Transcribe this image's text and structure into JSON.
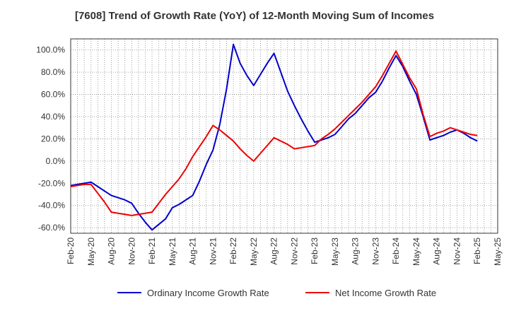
{
  "chart_data": {
    "type": "line",
    "title": "[7608]  Trend of Growth Rate (YoY) of 12-Month Moving Sum of Incomes",
    "xlabel": "",
    "ylabel": "",
    "ylim": [
      -65,
      110
    ],
    "y_ticks": [
      {
        "value": 100,
        "label": "100.0%"
      },
      {
        "value": 80,
        "label": "80.0%"
      },
      {
        "value": 60,
        "label": "60.0%"
      },
      {
        "value": 40,
        "label": "40.0%"
      },
      {
        "value": 20,
        "label": "20.0%"
      },
      {
        "value": 0,
        "label": "0.0%"
      },
      {
        "value": -20,
        "label": "-20.0%"
      },
      {
        "value": -40,
        "label": "-40.0%"
      },
      {
        "value": -60,
        "label": "-60.0%"
      }
    ],
    "x_tick_labels": [
      "Feb-20",
      "May-20",
      "Aug-20",
      "Nov-20",
      "Feb-21",
      "May-21",
      "Aug-21",
      "Nov-21",
      "Feb-22",
      "May-22",
      "Aug-22",
      "Nov-22",
      "Feb-23",
      "May-23",
      "Aug-23",
      "Nov-23",
      "Feb-24",
      "May-24",
      "Aug-24",
      "Nov-24",
      "Feb-25",
      "May-25"
    ],
    "x_months": [
      "2020-02",
      "2020-03",
      "2020-04",
      "2020-05",
      "2020-06",
      "2020-07",
      "2020-08",
      "2020-09",
      "2020-10",
      "2020-11",
      "2020-12",
      "2021-01",
      "2021-02",
      "2021-03",
      "2021-04",
      "2021-05",
      "2021-06",
      "2021-07",
      "2021-08",
      "2021-09",
      "2021-10",
      "2021-11",
      "2021-12",
      "2022-01",
      "2022-02",
      "2022-03",
      "2022-04",
      "2022-05",
      "2022-06",
      "2022-07",
      "2022-08",
      "2022-09",
      "2022-10",
      "2022-11",
      "2022-12",
      "2023-01",
      "2023-02",
      "2023-03",
      "2023-04",
      "2023-05",
      "2023-06",
      "2023-07",
      "2023-08",
      "2023-09",
      "2023-10",
      "2023-11",
      "2023-12",
      "2024-01",
      "2024-02",
      "2024-03",
      "2024-04",
      "2024-05",
      "2024-06",
      "2024-07",
      "2024-08",
      "2024-09",
      "2024-10",
      "2024-11",
      "2024-12",
      "2025-01",
      "2025-02"
    ],
    "grid": true,
    "legend_position": "bottom",
    "series": [
      {
        "name": "Ordinary Income Growth Rate",
        "color": "#0000cc",
        "values": [
          -22,
          -21,
          -20,
          -19,
          -23,
          -27,
          -31,
          -33,
          -35,
          -38,
          -47,
          -55,
          -62,
          -57,
          -52,
          -42,
          -39,
          -35,
          -31,
          -18,
          -3,
          10,
          33,
          65,
          105,
          88,
          77,
          68,
          78,
          88,
          97,
          80,
          63,
          50,
          38,
          27,
          17,
          19,
          21,
          24,
          31,
          38,
          43,
          50,
          57,
          62,
          72,
          84,
          95,
          85,
          72,
          60,
          40,
          19,
          21,
          23,
          26,
          28,
          25,
          21,
          18
        ]
      },
      {
        "name": "Net Income Growth Rate",
        "color": "#ee0000",
        "values": [
          -23,
          -22,
          -21,
          -21,
          -29,
          -37,
          -46,
          -47,
          -48,
          -49,
          -48,
          -47,
          -46,
          -38,
          -30,
          -23,
          -16,
          -7,
          4,
          13,
          22,
          32,
          28,
          23,
          18,
          11,
          5,
          0,
          7,
          14,
          21,
          18,
          15,
          11,
          12,
          13,
          14,
          20,
          24,
          29,
          35,
          41,
          47,
          53,
          60,
          67,
          77,
          88,
          99,
          87,
          75,
          65,
          42,
          22,
          25,
          27,
          30,
          28,
          26,
          24,
          23
        ]
      }
    ]
  }
}
